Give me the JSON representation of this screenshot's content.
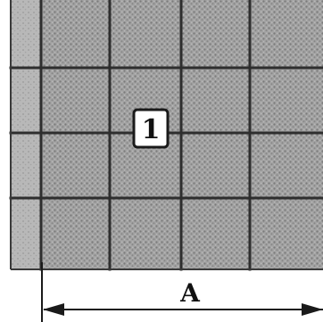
{
  "tile_label": "1",
  "dimension_label": "A",
  "colors": {
    "panel_fill": "#9e9e9e",
    "strip_fill": "#b3b3b3",
    "grid_line": "#2e2e2e",
    "dimension_line": "#1a1a1a",
    "label_box": "#ffffff"
  }
}
